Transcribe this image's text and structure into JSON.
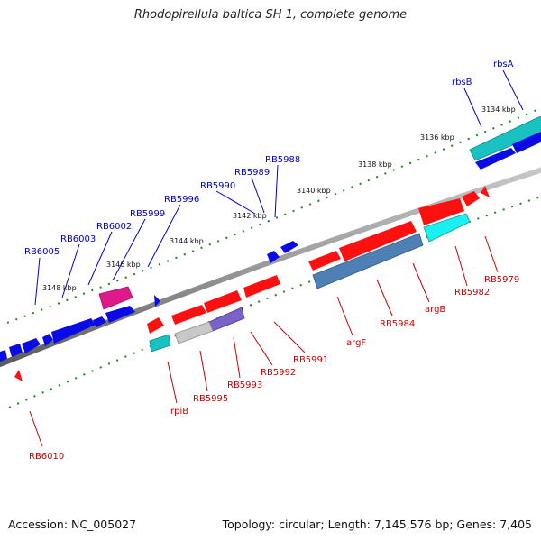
{
  "title": "Rhodopirellula baltica SH 1, complete genome",
  "footer": {
    "accession": "Accession: NC_005027",
    "summary": "Topology: circular; Length: 7,145,576 bp; Genes: 7,405"
  },
  "colors": {
    "backbone": "#8a8a8a",
    "forward_label": "#0000cc",
    "reverse_label": "#cc0000",
    "scale_dots": "#1a8a1a",
    "scale_text": "#111111"
  },
  "scale_ticks": [
    "3134 kbp",
    "3136 kbp",
    "3138 kbp",
    "3140 kbp",
    "3142 kbp",
    "3144 kbp",
    "3146 kbp",
    "3148 kbp"
  ],
  "forward_labels": [
    "rbsA",
    "rbsB",
    "RB5988",
    "RB5989",
    "RB5990",
    "RB5996",
    "RB5999",
    "RB6002",
    "RB6003",
    "RB6005"
  ],
  "reverse_labels": [
    "RB5979",
    "RB5982",
    "argB",
    "RB5984",
    "argF",
    "RB5991",
    "RB5992",
    "RB5993",
    "RB5995",
    "rpiB",
    "RB6010"
  ]
}
